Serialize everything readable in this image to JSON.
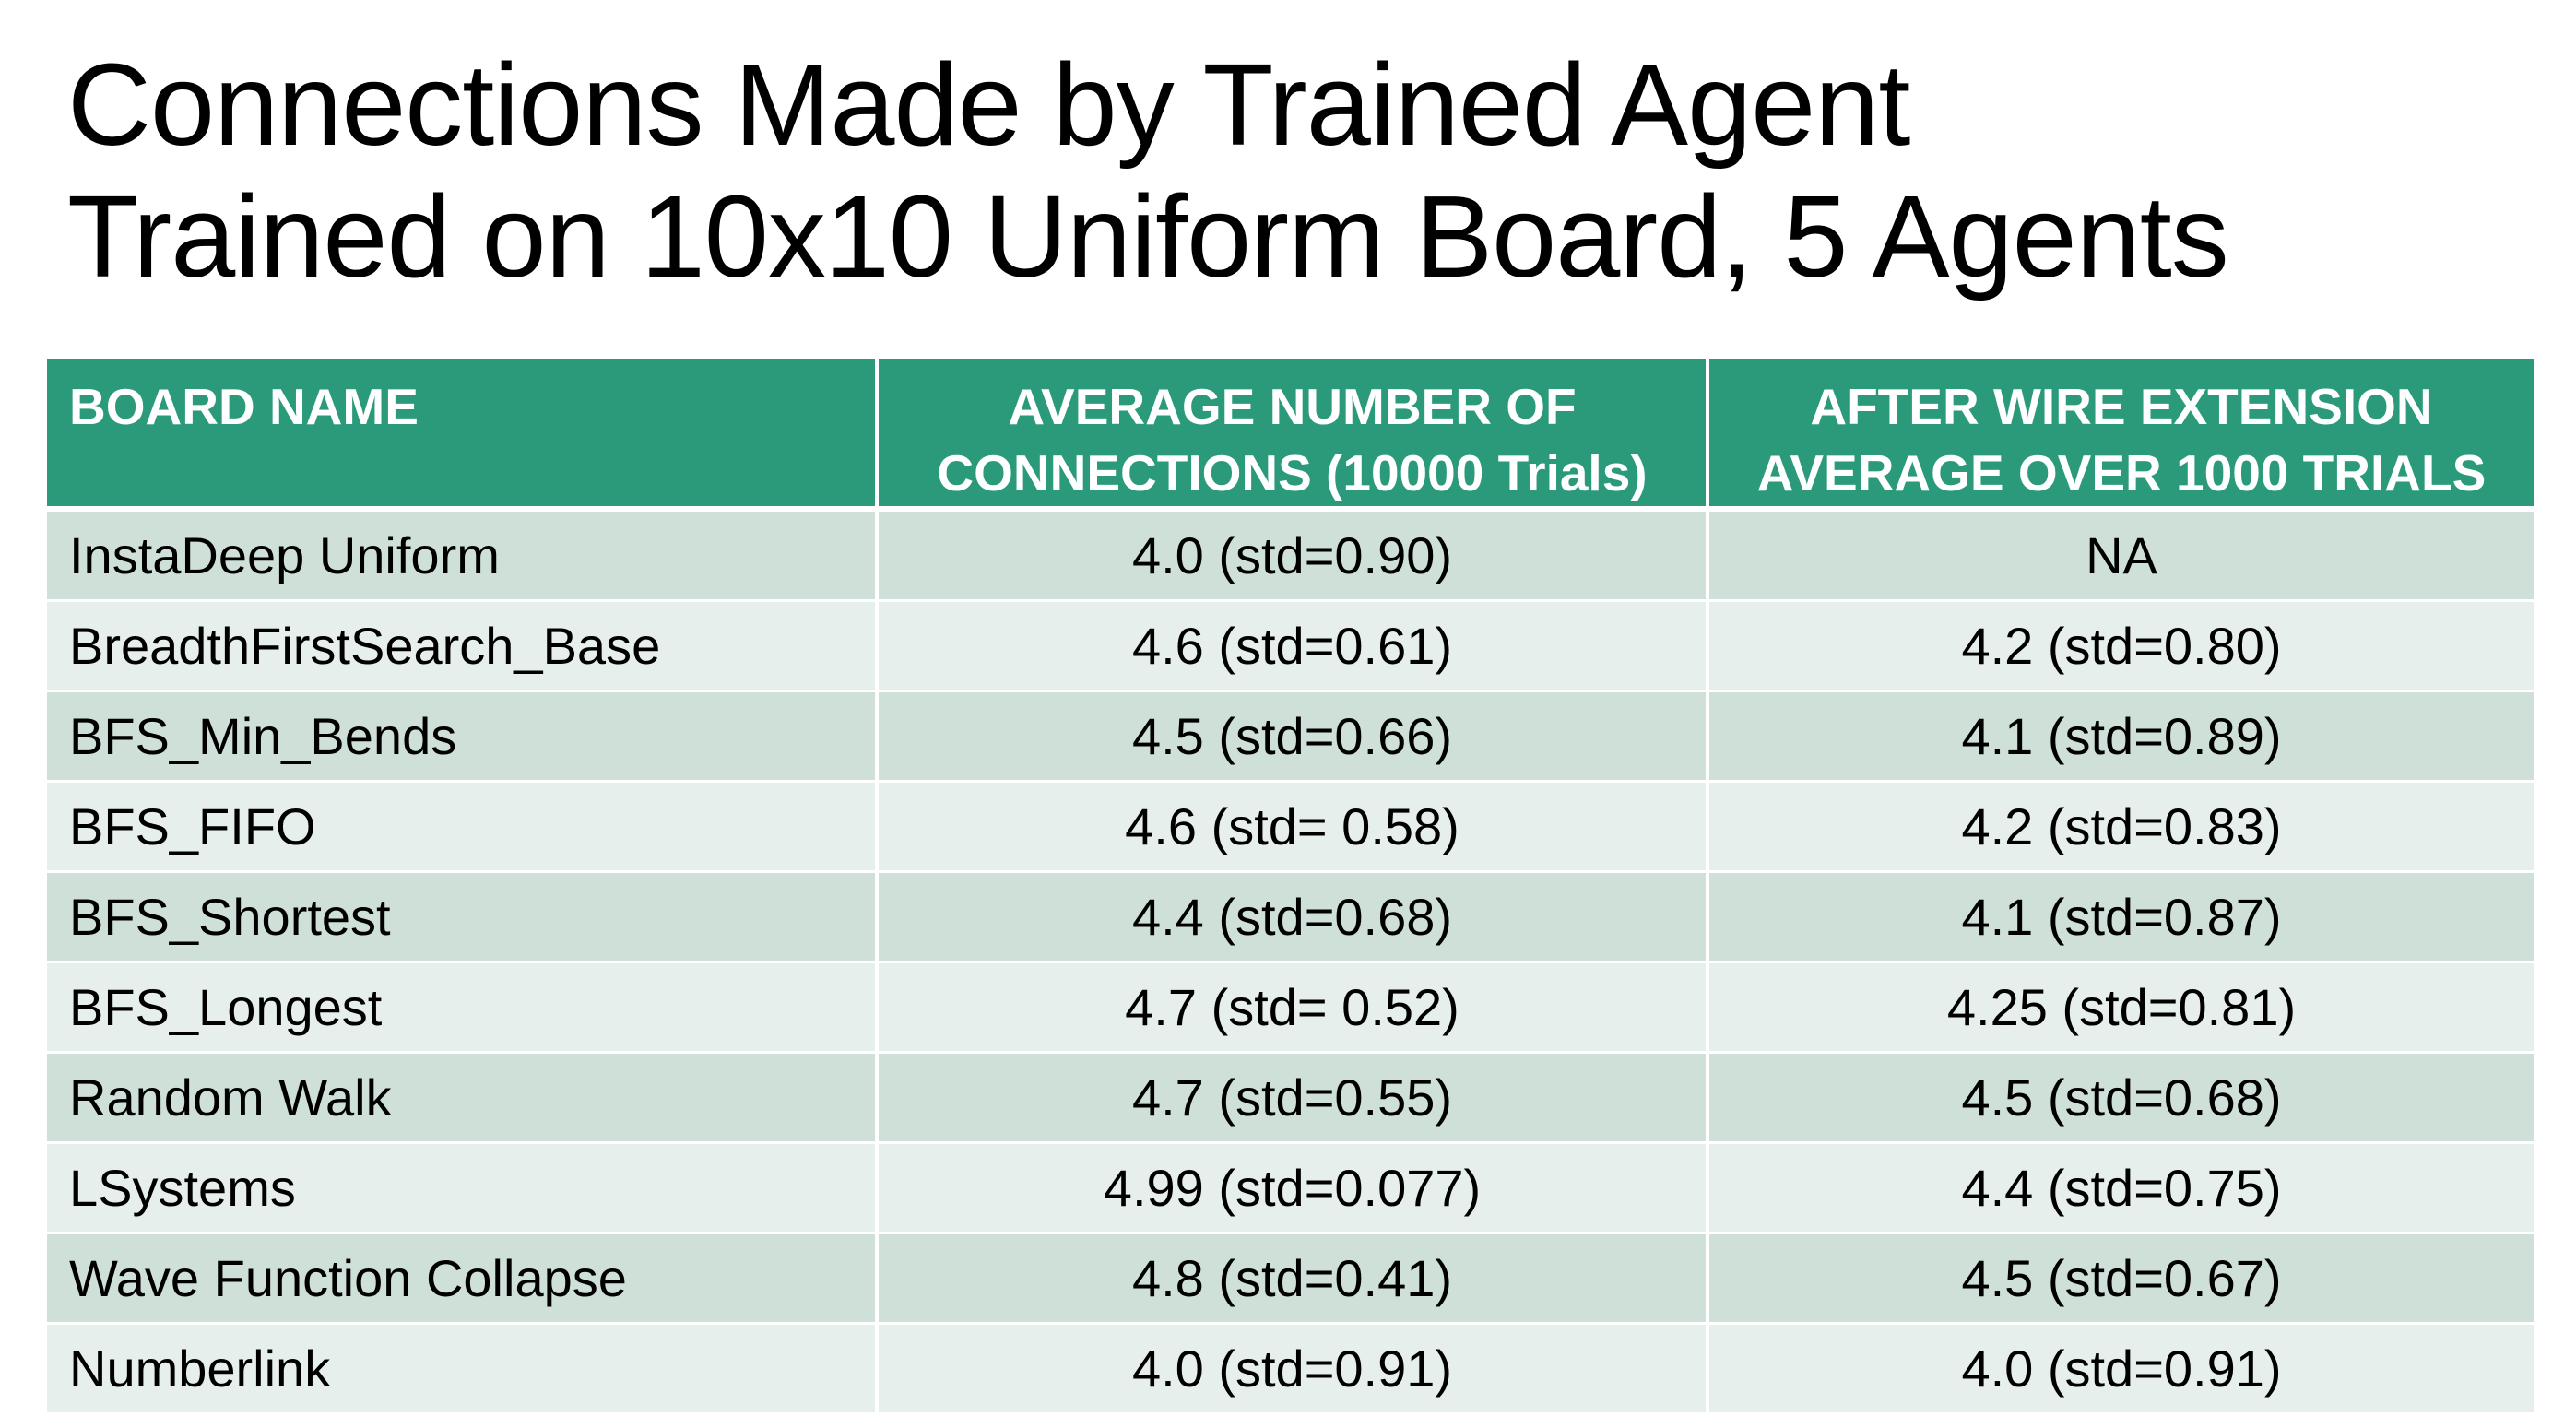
{
  "title": {
    "line1": "Connections Made by Trained Agent",
    "line2": "Trained on 10x10 Uniform Board, 5 Agents"
  },
  "colors": {
    "header_bg": "#2a9a7b",
    "row_dark": "#cfe0d9",
    "row_light": "#e7efec"
  },
  "table": {
    "headers": [
      [
        "BOARD NAME"
      ],
      [
        "AVERAGE NUMBER OF",
        "CONNECTIONS (10000 Trials)"
      ],
      [
        "AFTER WIRE EXTENSION",
        "AVERAGE OVER 1000 TRIALS"
      ]
    ],
    "rows": [
      [
        "InstaDeep Uniform",
        "4.0 (std=0.90)",
        "NA"
      ],
      [
        "BreadthFirstSearch_Base",
        "4.6 (std=0.61)",
        "4.2 (std=0.80)"
      ],
      [
        "BFS_Min_Bends",
        "4.5 (std=0.66)",
        "4.1 (std=0.89)"
      ],
      [
        "BFS_FIFO",
        "4.6 (std= 0.58)",
        "4.2 (std=0.83)"
      ],
      [
        "BFS_Shortest",
        "4.4 (std=0.68)",
        "4.1 (std=0.87)"
      ],
      [
        "BFS_Longest",
        "4.7 (std= 0.52)",
        "4.25 (std=0.81)"
      ],
      [
        "Random Walk",
        "4.7 (std=0.55)",
        "4.5 (std=0.68)"
      ],
      [
        "LSystems",
        "4.99 (std=0.077)",
        "4.4 (std=0.75)"
      ],
      [
        "Wave Function Collapse",
        "4.8 (std=0.41)",
        "4.5 (std=0.67)"
      ],
      [
        "Numberlink",
        "4.0 (std=0.91)",
        "4.0 (std=0.91)"
      ]
    ]
  }
}
